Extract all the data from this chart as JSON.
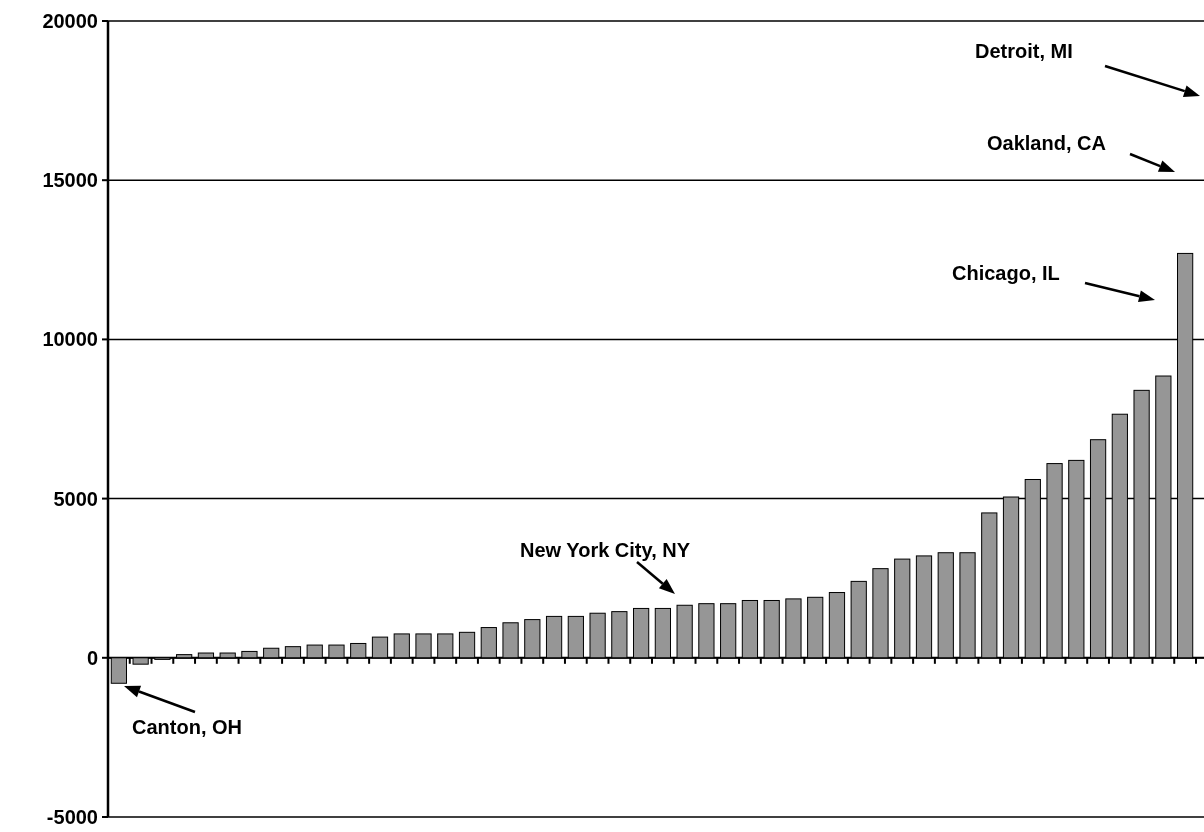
{
  "chart_data": {
    "type": "bar",
    "categories": [
      null,
      null,
      null,
      null,
      null,
      null,
      null,
      null,
      null,
      null,
      null,
      null,
      null,
      null,
      null,
      null,
      null,
      null,
      null,
      null,
      null,
      null,
      null,
      null,
      null,
      null,
      null,
      null,
      null,
      null,
      null,
      null,
      null,
      null,
      null,
      null,
      null,
      null,
      null,
      null,
      null,
      null,
      null,
      null,
      null,
      null,
      null,
      null,
      null,
      null
    ],
    "values": [
      -800,
      -200,
      -50,
      100,
      150,
      150,
      200,
      300,
      350,
      400,
      400,
      450,
      650,
      750,
      750,
      750,
      800,
      950,
      1100,
      1200,
      1300,
      1300,
      1400,
      1450,
      1550,
      1550,
      1650,
      1700,
      1700,
      1800,
      1800,
      1850,
      1900,
      2050,
      2400,
      2800,
      3100,
      3200,
      3300,
      3300,
      4550,
      5050,
      5600,
      6100,
      6200,
      6850,
      7650,
      8400,
      8850,
      12700
    ],
    "color": "#969696",
    "ylim": [
      -5000,
      20000
    ],
    "yticks": [
      -5000,
      0,
      5000,
      10000,
      15000,
      20000
    ],
    "grid": "y",
    "annotations": [
      "Detroit, MI",
      "Oakland, CA",
      "Chicago, IL",
      "New York City, NY",
      "Canton, OH"
    ]
  }
}
